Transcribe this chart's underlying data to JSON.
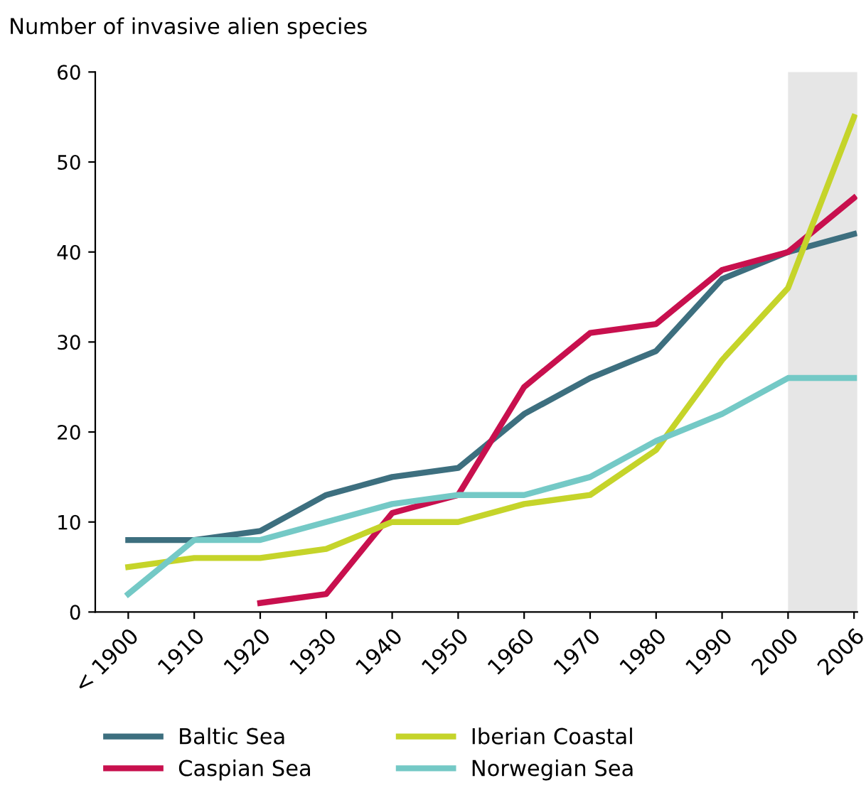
{
  "chart_data": {
    "type": "line",
    "ylabel": "Number of invasive alien species",
    "categories": [
      "< 1900",
      "1910",
      "1920",
      "1930",
      "1940",
      "1950",
      "1960",
      "1970",
      "1980",
      "1990",
      "2000",
      "2006"
    ],
    "series": [
      {
        "name": "Baltic Sea",
        "color": "#3d6f7f",
        "values": [
          8,
          8,
          9,
          13,
          15,
          16,
          22,
          26,
          29,
          37,
          40,
          42
        ]
      },
      {
        "name": "Caspian Sea",
        "color": "#c8104e",
        "values": [
          null,
          null,
          1,
          2,
          11,
          13,
          25,
          31,
          32,
          38,
          40,
          46
        ]
      },
      {
        "name": "Iberian Coastal",
        "color": "#c5d42a",
        "values": [
          5,
          6,
          6,
          7,
          10,
          10,
          12,
          13,
          18,
          28,
          36,
          55
        ]
      },
      {
        "name": "Norwegian Sea",
        "color": "#74c9c6",
        "values": [
          2,
          8,
          8,
          10,
          12,
          13,
          13,
          15,
          19,
          22,
          26,
          26
        ]
      }
    ],
    "bands": [
      {
        "axis": "x",
        "from": "2000",
        "to": "2006",
        "color": "#e6e6e6"
      }
    ],
    "ylim": [
      0,
      60
    ],
    "yticks": [
      0,
      10,
      20,
      30,
      40,
      50,
      60
    ],
    "grid": false,
    "legend": "bottom",
    "marker": "none",
    "line_style": "solid"
  }
}
